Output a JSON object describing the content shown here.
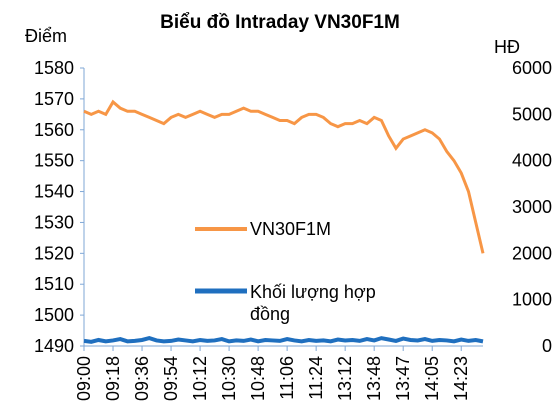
{
  "chart_data": {
    "type": "line",
    "title": "Biểu đồ Intraday VN30F1M",
    "y_label": "Điểm",
    "y2_label": "HĐ",
    "categories": [
      "09:00",
      null,
      null,
      null,
      "09:18",
      null,
      null,
      null,
      "09:36",
      null,
      null,
      null,
      "09:54",
      null,
      null,
      null,
      "10:12",
      null,
      null,
      null,
      "10:30",
      null,
      null,
      null,
      "10:48",
      null,
      null,
      null,
      "11:06",
      null,
      null,
      null,
      "11:24",
      null,
      null,
      null,
      "13:12",
      null,
      null,
      null,
      "13:48",
      null,
      null,
      null,
      "13:47",
      null,
      null,
      null,
      "14:05",
      null,
      null,
      null,
      "14:23",
      null,
      null,
      null
    ],
    "series": [
      {
        "name": "VN30F1M",
        "color": "#f79646",
        "axis": "y",
        "values": [
          1566,
          1565,
          1566,
          1565,
          1569,
          1567,
          1566,
          1566,
          1565,
          1564,
          1563,
          1562,
          1564,
          1565,
          1564,
          1565,
          1566,
          1565,
          1564,
          1565,
          1565,
          1566,
          1567,
          1566,
          1566,
          1565,
          1564,
          1563,
          1563,
          1562,
          1564,
          1565,
          1565,
          1564,
          1562,
          1561,
          1562,
          1562,
          1563,
          1562,
          1564,
          1563,
          1558,
          1554,
          1557,
          1558,
          1559,
          1560,
          1559,
          1557,
          1553,
          1550,
          1546,
          1540,
          1530,
          1520
        ]
      },
      {
        "name": "Khối lượng hợp đồng",
        "color": "#1f6fbf",
        "axis": "y2",
        "values": [
          110,
          90,
          130,
          100,
          120,
          150,
          100,
          110,
          130,
          170,
          120,
          100,
          110,
          140,
          120,
          100,
          130,
          110,
          120,
          150,
          100,
          120,
          110,
          140,
          100,
          130,
          120,
          110,
          150,
          120,
          100,
          130,
          110,
          120,
          100,
          140,
          120,
          130,
          110,
          150,
          120,
          170,
          140,
          110,
          160,
          130,
          120,
          150,
          110,
          130,
          120,
          100,
          140,
          110,
          130,
          100
        ]
      }
    ],
    "ylim": [
      1490,
      1580
    ],
    "yticks": [
      1490,
      1500,
      1510,
      1520,
      1530,
      1540,
      1550,
      1560,
      1570,
      1580
    ],
    "y2lim": [
      0,
      6000
    ],
    "y2ticks": [
      0,
      1000,
      2000,
      3000,
      4000,
      5000,
      6000
    ]
  }
}
